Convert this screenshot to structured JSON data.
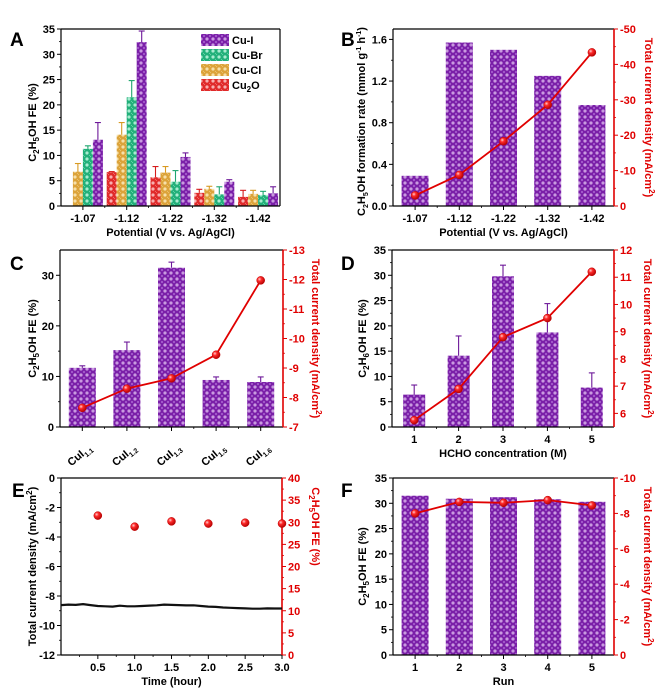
{
  "figure": {
    "colors": {
      "cu_i": "#8b2fb8",
      "cu_br": "#2fc48a",
      "cu_cl": "#e6b24a",
      "cu2o": "#e33a3a",
      "bar_purple": "#8b2fb8",
      "red_line": "#e00000",
      "black_line": "#111111"
    }
  },
  "chart_data": [
    {
      "panel": "A",
      "type": "bar",
      "title": "",
      "xlabel": "Potential (V vs. Ag/AgCl)",
      "ylabel": "C2H5OH FE (%)",
      "ylim": [
        0,
        35
      ],
      "yticks": [
        0,
        5,
        10,
        15,
        20,
        25,
        30,
        35
      ],
      "categories": [
        "-1.07",
        "-1.12",
        "-1.22",
        "-1.32",
        "-1.42"
      ],
      "legend_position": "top-right",
      "series": [
        {
          "name": "Cu2O",
          "color_key": "cu2o",
          "values": [
            0,
            6.7,
            5.7,
            2.6,
            1.8
          ],
          "errors": [
            0,
            0.1,
            2.1,
            0.7,
            1.3
          ]
        },
        {
          "name": "Cu-Cl",
          "color_key": "cu_cl",
          "values": [
            6.8,
            14.1,
            6.6,
            3.4,
            2.4
          ],
          "errors": [
            1.6,
            2.4,
            1.2,
            0.5,
            0.7
          ]
        },
        {
          "name": "Cu-Br",
          "color_key": "cu_br",
          "values": [
            11.3,
            21.5,
            4.8,
            2.3,
            2.2
          ],
          "errors": [
            0.6,
            3.3,
            2.2,
            1.5,
            0.7
          ]
        },
        {
          "name": "Cu-I",
          "color_key": "cu_i",
          "values": [
            13.1,
            32.4,
            9.7,
            4.8,
            2.5
          ],
          "errors": [
            3.4,
            2.2,
            0.8,
            0.4,
            1.3
          ]
        }
      ],
      "legend_labels": [
        "Cu-I",
        "Cu-Br",
        "Cu-Cl",
        "Cu2O"
      ]
    },
    {
      "panel": "B",
      "type": "bar+line",
      "xlabel": "Potential (V vs. Ag/AgCl)",
      "ylabel": "C2H5OH formation rate (mmol g-1 h-1)",
      "ylabel_right": "Total current density (mA/cm2)",
      "categories": [
        "-1.07",
        "-1.12",
        "-1.22",
        "-1.32",
        "-1.42"
      ],
      "ylim": [
        0,
        1.7
      ],
      "yticks": [
        0.0,
        0.4,
        0.8,
        1.2,
        1.6
      ],
      "ytick_labels": [
        "0.0",
        "0.4",
        "0.8",
        "1.2",
        "1.6"
      ],
      "ylim_right": [
        0,
        -50
      ],
      "yticks_right": [
        0,
        -10,
        -20,
        -30,
        -40,
        -50
      ],
      "bars": {
        "name": "C2H5OH formation rate",
        "values": [
          0.29,
          1.57,
          1.5,
          1.25,
          0.97
        ]
      },
      "line": {
        "name": "Total current density",
        "values": [
          -3.0,
          -8.8,
          -18.3,
          -28.6,
          -43.4
        ]
      }
    },
    {
      "panel": "C",
      "type": "bar+line",
      "xlabel": "",
      "ylabel": "C2H5OH FE (%)",
      "ylabel_right": "Total current density (mA/cm2)",
      "categories": [
        "CuI1.1",
        "CuI1.2",
        "CuI1.3",
        "CuI1.5",
        "CuI1.6"
      ],
      "category_subscripts": [
        "1.1",
        "1.2",
        "1.3",
        "1.5",
        "1.6"
      ],
      "ylim": [
        0,
        35
      ],
      "yticks": [
        0,
        10,
        20,
        30
      ],
      "ylim_right": [
        -7,
        -13
      ],
      "yticks_right": [
        -7,
        -8,
        -9,
        -10,
        -11,
        -12,
        -13
      ],
      "bars": {
        "name": "C2H5OH FE",
        "values": [
          11.7,
          15.2,
          31.5,
          9.3,
          8.9
        ],
        "errors": [
          0.4,
          1.6,
          1.1,
          0.6,
          1.0
        ]
      },
      "line": {
        "name": "Total current density",
        "values": [
          -7.65,
          -8.3,
          -8.65,
          -9.45,
          -11.97
        ]
      }
    },
    {
      "panel": "D",
      "type": "bar+line",
      "xlabel": "HCHO concentration (M)",
      "ylabel": "C2H6OH FE (%)",
      "ylabel_right": "Total current density (mA/cm2)",
      "categories": [
        "1",
        "2",
        "3",
        "4",
        "5"
      ],
      "ylim": [
        0,
        35
      ],
      "yticks": [
        0,
        5,
        10,
        15,
        20,
        25,
        30,
        35
      ],
      "ylim_right": [
        5.5,
        12
      ],
      "yticks_right": [
        6,
        7,
        8,
        9,
        10,
        11,
        12
      ],
      "bars": {
        "name": "C2H6OH FE",
        "values": [
          6.4,
          14.1,
          29.8,
          18.7,
          7.8
        ],
        "errors": [
          1.9,
          3.9,
          2.2,
          5.7,
          2.9
        ]
      },
      "line": {
        "name": "Total current density",
        "values": [
          5.75,
          6.9,
          8.8,
          9.5,
          11.2
        ]
      }
    },
    {
      "panel": "E",
      "type": "line+scatter",
      "xlabel": "Time (hour)",
      "ylabel": "Total current density (mA/cm2)",
      "ylabel_right": "C2H5OH FE (%)",
      "xlim": [
        0,
        3.0
      ],
      "xticks": [
        0.5,
        1.0,
        1.5,
        2.0,
        2.5,
        3.0
      ],
      "xtick_labels": [
        "0.5",
        "1.0",
        "1.5",
        "2.0",
        "2.5",
        "3.0"
      ],
      "ylim": [
        -12,
        0
      ],
      "yticks": [
        0,
        -2,
        -4,
        -6,
        -8,
        -10,
        -12
      ],
      "ylim_right": [
        0,
        40
      ],
      "yticks_right": [
        0,
        5,
        10,
        15,
        20,
        25,
        30,
        35,
        40
      ],
      "line": {
        "name": "Total current density",
        "x": [
          0,
          0.1,
          0.2,
          0.3,
          0.4,
          0.5,
          0.6,
          0.7,
          0.8,
          0.9,
          1.0,
          1.1,
          1.2,
          1.3,
          1.4,
          1.5,
          1.6,
          1.7,
          1.8,
          1.9,
          2.0,
          2.1,
          2.2,
          2.3,
          2.4,
          2.5,
          2.6,
          2.7,
          2.8,
          2.9,
          3.0
        ],
        "values": [
          -8.62,
          -8.58,
          -8.6,
          -8.55,
          -8.62,
          -8.68,
          -8.7,
          -8.72,
          -8.66,
          -8.7,
          -8.7,
          -8.68,
          -8.65,
          -8.63,
          -8.58,
          -8.6,
          -8.62,
          -8.64,
          -8.63,
          -8.68,
          -8.72,
          -8.74,
          -8.78,
          -8.8,
          -8.82,
          -8.84,
          -8.86,
          -8.86,
          -8.84,
          -8.85,
          -8.85
        ]
      },
      "scatter": {
        "name": "C2H5OH FE",
        "x": [
          0.5,
          1.0,
          1.5,
          2.0,
          2.5,
          3.0
        ],
        "values": [
          31.5,
          29.0,
          30.2,
          29.7,
          29.9,
          29.7
        ]
      }
    },
    {
      "panel": "F",
      "type": "bar+line",
      "xlabel": "Run",
      "ylabel": "C2H5OH FE (%)",
      "ylabel_right": "Total current density (mA/cm2)",
      "categories": [
        "1",
        "2",
        "3",
        "4",
        "5"
      ],
      "ylim": [
        0,
        35
      ],
      "yticks": [
        0,
        5,
        10,
        15,
        20,
        25,
        30,
        35
      ],
      "ylim_right": [
        0,
        -10
      ],
      "yticks_right": [
        0,
        -2,
        -4,
        -6,
        -8,
        -10
      ],
      "bars": {
        "name": "C2H5OH FE",
        "values": [
          31.5,
          30.9,
          31.2,
          30.8,
          30.3
        ]
      },
      "line": {
        "name": "Total current density",
        "values": [
          -8.0,
          -8.65,
          -8.6,
          -8.75,
          -8.45
        ]
      }
    }
  ],
  "labels": {
    "panel_a": "A",
    "panel_b": "B",
    "panel_c": "C",
    "panel_d": "D",
    "panel_e": "E",
    "panel_f": "F",
    "ylabel_fe_prefix": "C",
    "ylabel_fe_sub2": "2",
    "ylabel_fe_mid": "H",
    "ylabel_fe_sub5": "5",
    "ylabel_fe_sub6": "6",
    "ylabel_fe_suffix": "OH FE (%)",
    "ylabel_rate_suffix": "OH formation rate (mmol g",
    "ylabel_rate_exp1": "-1",
    "ylabel_rate_h": " h",
    "ylabel_rate_exp2": "-1",
    "ylabel_rate_close": ")",
    "ylabel_tcd": "Total current density (mA/cm",
    "ylabel_tcd_exp": "2",
    "ylabel_tcd_close": ")",
    "cu2o_label_pre": "Cu",
    "cu2o_label_sub": "2",
    "cu2o_label_post": "O",
    "cui_prefix": "CuI"
  }
}
